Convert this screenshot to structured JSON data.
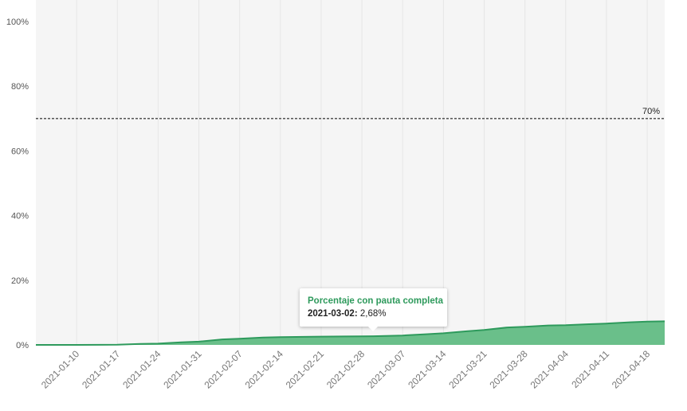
{
  "chart_data": {
    "type": "area",
    "title": "",
    "xlabel": "",
    "ylabel": "",
    "ylim": [
      0,
      100
    ],
    "y_ticks": [
      "0%",
      "20%",
      "40%",
      "60%",
      "80%",
      "100%"
    ],
    "x_range": [
      "2021-01-03",
      "2021-04-21"
    ],
    "x_tick_labels": [
      "2021-01-10",
      "2021-01-17",
      "2021-01-24",
      "2021-01-31",
      "2021-02-07",
      "2021-02-14",
      "2021-02-21",
      "2021-02-28",
      "2021-03-07",
      "2021-03-14",
      "2021-03-21",
      "2021-03-28",
      "2021-04-04",
      "2021-04-11",
      "2021-04-18"
    ],
    "grid": "vertical",
    "colors": {
      "area": "#6abf8a",
      "line": "#2e9a5c",
      "reference": "#444444",
      "background": "#f5f5f5"
    },
    "series": [
      {
        "name": "Porcentaje con pauta completa",
        "x": [
          "2021-01-03",
          "2021-01-10",
          "2021-01-17",
          "2021-01-21",
          "2021-01-24",
          "2021-01-28",
          "2021-01-31",
          "2021-02-04",
          "2021-02-07",
          "2021-02-11",
          "2021-02-14",
          "2021-02-18",
          "2021-02-21",
          "2021-02-25",
          "2021-02-28",
          "2021-03-02",
          "2021-03-07",
          "2021-03-11",
          "2021-03-14",
          "2021-03-18",
          "2021-03-21",
          "2021-03-25",
          "2021-03-28",
          "2021-04-01",
          "2021-04-04",
          "2021-04-08",
          "2021-04-11",
          "2021-04-15",
          "2021-04-18",
          "2021-04-21"
        ],
        "values": [
          0,
          0,
          0.05,
          0.3,
          0.4,
          0.8,
          1.0,
          1.7,
          1.9,
          2.3,
          2.4,
          2.5,
          2.55,
          2.6,
          2.65,
          2.68,
          2.9,
          3.3,
          3.6,
          4.2,
          4.6,
          5.4,
          5.6,
          6.0,
          6.1,
          6.4,
          6.6,
          7.0,
          7.2,
          7.3
        ]
      }
    ],
    "reference_line": {
      "value": 70,
      "label": "70%",
      "style": "dashed"
    },
    "tooltip": {
      "title": "Porcentaje con pauta completa",
      "date": "2021-03-02",
      "value_text": "2,68%"
    }
  }
}
